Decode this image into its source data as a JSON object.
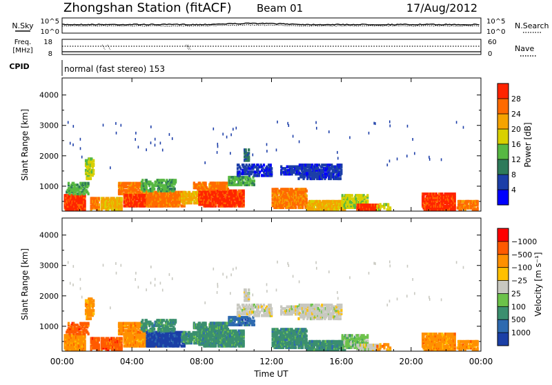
{
  "header": {
    "station": "Zhongshan Station (fitACF)",
    "beam": "Beam 01",
    "date": "17/Aug/2012"
  },
  "top_panels": {
    "nsky_label": "N.Sky",
    "nsearch_label": "N.Search",
    "nsky_ticks": [
      "10^5",
      "10^0"
    ],
    "nsearch_ticks": [
      "10^5",
      "10^0"
    ],
    "freq_label": "Freq.",
    "freq_unit": "[MHz]",
    "freq_ticks": [
      "18",
      "8"
    ],
    "nave_label": "Nave",
    "nave_ticks": [
      "60",
      "0"
    ],
    "cpid_label": "CPID",
    "cpid_text": "normal (fast stereo) 153"
  },
  "chart_data": [
    {
      "type": "heatmap",
      "name": "power",
      "ylabel": "Slant Range [km]",
      "yticks": [
        "1000",
        "2000",
        "3000",
        "4000"
      ],
      "ylim": [
        180,
        4560
      ],
      "xlim": [
        0,
        24
      ],
      "colorbar_label": "Power [dB]",
      "colorbar_ticks": [
        "4",
        "8",
        "12",
        "16",
        "20",
        "24",
        "28"
      ],
      "colorbar_colors": [
        "#0000ff",
        "#1c3ea8",
        "#2e7a5a",
        "#57b843",
        "#d8d000",
        "#f5a300",
        "#ff6a00",
        "#ff2400"
      ],
      "grid": false
    },
    {
      "type": "heatmap",
      "name": "velocity",
      "ylabel": "Slant Range [km]",
      "yticks": [
        "1000",
        "2000",
        "3000",
        "4000"
      ],
      "ylim": [
        180,
        4560
      ],
      "xlim": [
        0,
        24
      ],
      "xlabel": "Time UT",
      "xticks": [
        "00:00",
        "04:00",
        "08:00",
        "12:00",
        "16:00",
        "20:00",
        "00:00"
      ],
      "colorbar_label": "Velocity [m s⁻¹]",
      "colorbar_ticks": [
        "1000",
        "500",
        "100",
        "25",
        "−25",
        "−100",
        "−500",
        "−1000"
      ],
      "colorbar_colors": [
        "#1b3fa6",
        "#2e6ab0",
        "#3b8f6f",
        "#6cc24a",
        "#c8c8c0",
        "#ffc000",
        "#ff9000",
        "#ff5a00",
        "#ff0000"
      ],
      "grid": false
    }
  ]
}
